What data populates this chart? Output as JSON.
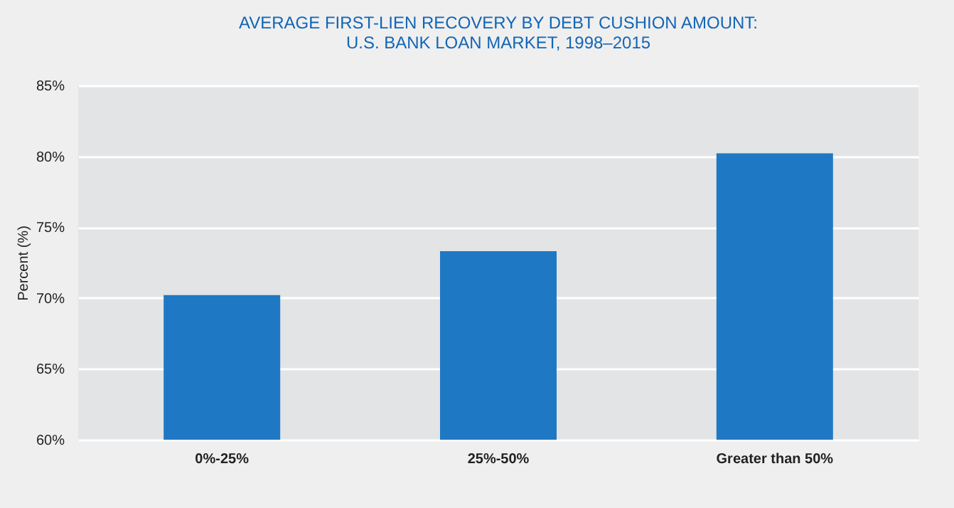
{
  "chart_data": {
    "type": "bar",
    "title": "AVERAGE FIRST-LIEN RECOVERY BY DEBT CUSHION AMOUNT:\nU.S. BANK LOAN MARKET, 1998–2015",
    "ylabel": "Percent (%)",
    "categories": [
      "0%-25%",
      "25%-50%",
      "Greater than 50%"
    ],
    "values": [
      70.2,
      73.3,
      80.2
    ],
    "color": "#1f78c4",
    "ylim": [
      60,
      85
    ],
    "yticks": [
      {
        "value": 60,
        "label": "60%"
      },
      {
        "value": 65,
        "label": "65%"
      },
      {
        "value": 70,
        "label": "70%"
      },
      {
        "value": 75,
        "label": "75%"
      },
      {
        "value": 80,
        "label": "80%"
      },
      {
        "value": 85,
        "label": "85%"
      }
    ],
    "grid": "y"
  }
}
